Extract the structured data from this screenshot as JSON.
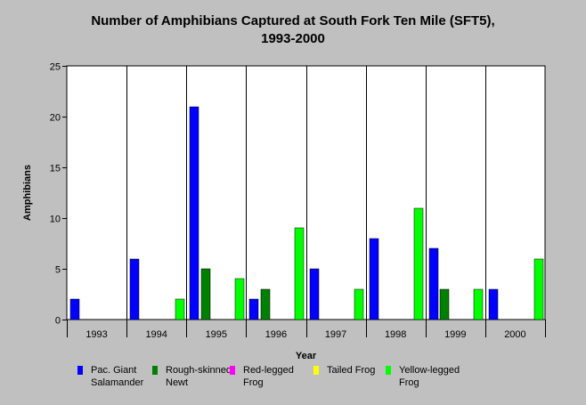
{
  "title_line1": "Number of Amphibians Captured at South Fork Ten Mile (SFT5),",
  "title_line2": "1993-2000",
  "chart_data": {
    "type": "bar",
    "categories": [
      "1993",
      "1994",
      "1995",
      "1996",
      "1997",
      "1998",
      "1999",
      "2000"
    ],
    "xlabel": "Year",
    "ylabel": "Amphibians",
    "ylim": [
      0,
      25
    ],
    "yticks": [
      0,
      5,
      10,
      15,
      20,
      25
    ],
    "grid": "vertical category separators",
    "legend_position": "bottom",
    "series": [
      {
        "name": "Pac. Giant Salamander",
        "color": "#0000ff",
        "values": [
          2,
          6,
          21,
          2,
          5,
          8,
          7,
          3
        ]
      },
      {
        "name": "Rough-skinned Newt",
        "color": "#008000",
        "values": [
          0,
          0,
          5,
          3,
          0,
          0,
          3,
          0
        ]
      },
      {
        "name": "Red-legged Frog",
        "color": "#ff00ff",
        "values": [
          0,
          0,
          0,
          0,
          0,
          0,
          0,
          0
        ]
      },
      {
        "name": "Tailed Frog",
        "color": "#ffff00",
        "values": [
          0,
          0,
          0,
          0,
          0,
          0,
          0,
          0
        ]
      },
      {
        "name": "Yellow-legged Frog",
        "color": "#00ff00",
        "values": [
          0,
          2,
          4,
          9,
          3,
          11,
          3,
          6
        ]
      }
    ]
  }
}
